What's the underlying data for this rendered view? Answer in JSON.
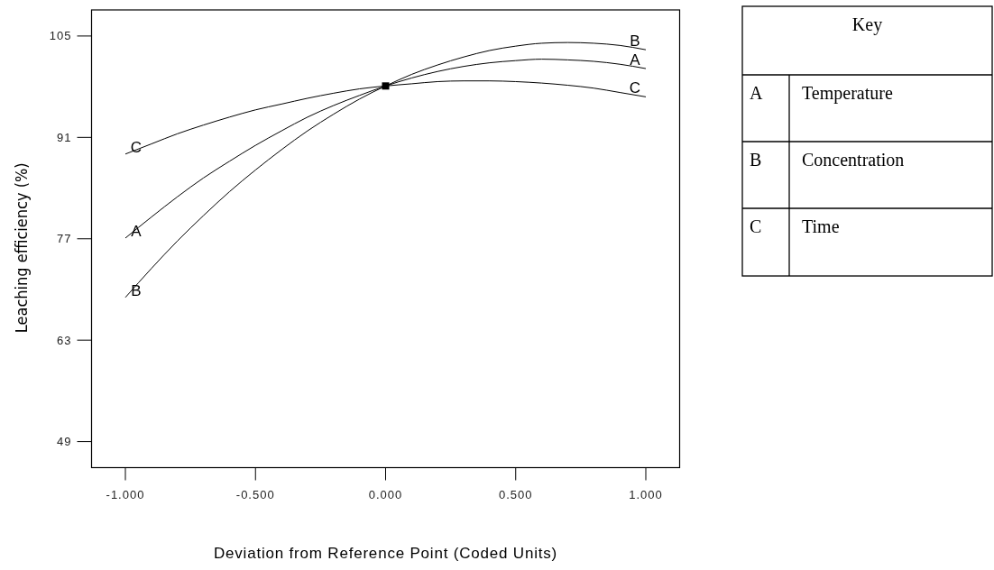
{
  "chart_data": {
    "type": "line",
    "xlabel": "Deviation from Reference Point (Coded Units)",
    "ylabel": "Leaching efficiency (%)",
    "xlim": [
      -1.13,
      1.13
    ],
    "xticks": [
      {
        "value": -1,
        "label": "-1.000"
      },
      {
        "value": -0.5,
        "label": "-0.500"
      },
      {
        "value": 0,
        "label": "0.000"
      },
      {
        "value": 0.5,
        "label": "0.500"
      },
      {
        "value": 1,
        "label": "1.000"
      }
    ],
    "ylim": [
      45.4,
      108.6
    ],
    "yticks": [
      49,
      63,
      77,
      91,
      105
    ],
    "x": [
      -1,
      -0.9,
      -0.8,
      -0.7,
      -0.6,
      -0.5,
      -0.4,
      -0.3,
      -0.2,
      -0.1,
      0,
      0.1,
      0.2,
      0.3,
      0.4,
      0.5,
      0.6,
      0.7,
      0.8,
      0.9,
      1
    ],
    "series": [
      {
        "name": "A",
        "color": "#000000",
        "values": [
          77.1,
          80.0,
          82.8,
          85.4,
          87.7,
          89.9,
          91.9,
          93.8,
          95.4,
          96.8,
          98.1,
          99.2,
          100.1,
          100.8,
          101.3,
          101.6,
          101.8,
          101.7,
          101.5,
          101.1,
          100.5
        ]
      },
      {
        "name": "B",
        "color": "#000000",
        "values": [
          68.9,
          72.9,
          76.7,
          80.2,
          83.5,
          86.5,
          89.3,
          91.9,
          94.2,
          96.3,
          98.1,
          99.7,
          101.0,
          102.1,
          103.0,
          103.6,
          104.0,
          104.1,
          104.0,
          103.7,
          103.1
        ]
      },
      {
        "name": "C",
        "color": "#000000",
        "values": [
          88.7,
          90.1,
          91.5,
          92.7,
          93.8,
          94.8,
          95.6,
          96.4,
          97.1,
          97.7,
          98.1,
          98.4,
          98.7,
          98.8,
          98.8,
          98.7,
          98.5,
          98.2,
          97.8,
          97.2,
          96.6
        ]
      },
      {
        "type": "scatter",
        "color": "#000000",
        "x": [
          0
        ],
        "values": [
          98.1
        ],
        "marker": "square"
      }
    ],
    "marker": "none",
    "line_style": "solid",
    "grid": false,
    "legend": "top right",
    "legend_title": "Key",
    "annotations": [
      "Temperature",
      "Concentration",
      "Time"
    ]
  }
}
